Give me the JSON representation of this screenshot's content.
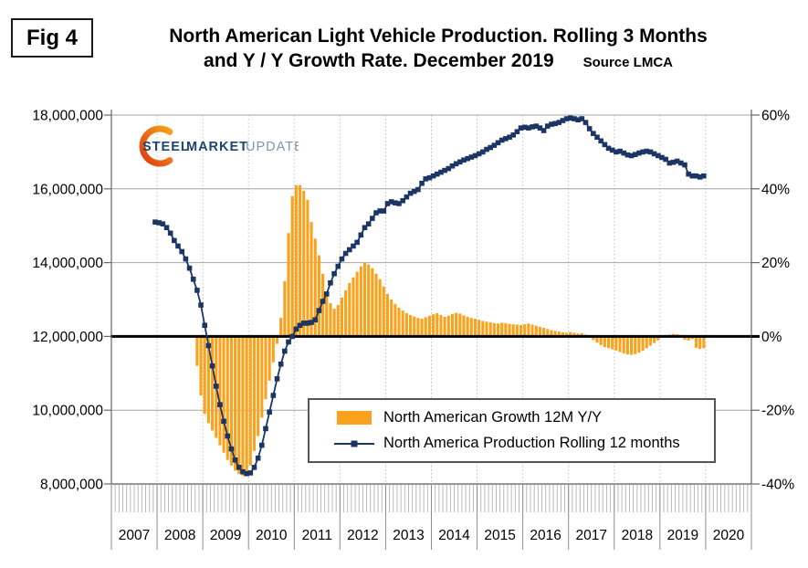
{
  "figure": {
    "fig_label": "Fig 4",
    "title_line1": "North American Light Vehicle Production. Rolling 3 Months",
    "title_line2": "and Y / Y Growth Rate. December 2019",
    "source": "Source LMCA"
  },
  "logo": {
    "word1": "STEEL",
    "word2": "MARKET",
    "word3": "UPDATE"
  },
  "legend": {
    "items": [
      {
        "label": "North American Growth 12M Y/Y",
        "marker": "bar"
      },
      {
        "label": "North America Production Rolling 12 months",
        "marker": "line-square"
      }
    ]
  },
  "colors": {
    "bar": "#FAA21B",
    "line": "#1B3564",
    "zero_line": "#000000",
    "grid": "#A6A6A6",
    "year_grid_dotted": "#BFBFBF",
    "axis": "#666666",
    "minor_tick": "#B3B3B3",
    "logo_navy": "#1E4374",
    "logo_light_blue": "#7E96AF",
    "logo_orange_start": "#E84E1B",
    "logo_orange_end": "#F9A01B"
  },
  "chart_data": {
    "type": "combo",
    "title": "North American Light Vehicle Production. Rolling 3 Months and Y / Y Growth Rate. December 2019",
    "grid": true,
    "legend_position": "inside-bottom-center",
    "x_axis": {
      "years": [
        "2007",
        "2008",
        "2009",
        "2010",
        "2011",
        "2012",
        "2013",
        "2014",
        "2015",
        "2016",
        "2017",
        "2018",
        "2019",
        "2020"
      ],
      "range_months": [
        "2007-01",
        "2020-12"
      ]
    },
    "y_left": {
      "min": 8000000,
      "max": 18000000,
      "tick_labels": [
        "18,000,000",
        "16,000,000",
        "14,000,000",
        "12,000,000",
        "10,000,000",
        "8,000,000"
      ],
      "tick_values_millions": [
        18,
        16,
        14,
        12,
        10,
        8
      ]
    },
    "y_right": {
      "min_pct": -40,
      "max_pct": 60,
      "tick_labels": [
        "60%",
        "40%",
        "20%",
        "0%",
        "-20%",
        "-40%"
      ],
      "tick_values_pct": [
        60,
        40,
        20,
        0,
        -20,
        -40
      ]
    },
    "zero_line_pct": 0,
    "series": [
      {
        "name": "North American Growth 12M Y/Y",
        "type": "bar",
        "axis": "right",
        "unit": "percent",
        "color": "#FAA21B",
        "start_month": "2008-11",
        "values": [
          -8,
          -16,
          -21,
          -23.5,
          -25.5,
          -27.5,
          -29.5,
          -31.5,
          -33.5,
          -35,
          -36.4,
          -37.3,
          -37.7,
          -36.5,
          -35,
          -31,
          -27,
          -22,
          -17,
          -12,
          -7,
          -2,
          5,
          15,
          28,
          38,
          41,
          41,
          39.5,
          37,
          31,
          26.5,
          22,
          17,
          12,
          9,
          7.5,
          8.5,
          10.5,
          12.5,
          14.5,
          16,
          17.5,
          19,
          20,
          19.5,
          18.5,
          17,
          15.5,
          13.5,
          11.5,
          10,
          8.8,
          7.8,
          7,
          6.3,
          5.8,
          5.4,
          5,
          4.8,
          5.2,
          5.6,
          6,
          6.3,
          5.8,
          5.3,
          5.6,
          6.1,
          6.4,
          6.2,
          5.7,
          5.3,
          5,
          4.8,
          4.5,
          4.2,
          4,
          3.8,
          3.6,
          3.5,
          3.7,
          3.6,
          3.4,
          3.3,
          3.2,
          3.1,
          3.3,
          3.5,
          3.2,
          2.9,
          2.6,
          2.3,
          2,
          1.7,
          1.5,
          1.3,
          1.1,
          1,
          1.2,
          1,
          0.8,
          0.9,
          0.5,
          -0.4,
          -1,
          -1.7,
          -2.4,
          -2.9,
          -3.2,
          -3.5,
          -3.8,
          -4.2,
          -4.6,
          -4.9,
          -5,
          -4.8,
          -4.4,
          -3.9,
          -3.2,
          -2.5,
          -1.8,
          -1.1,
          -0.4,
          0.3,
          0.5,
          0.7,
          0.6,
          0.4,
          -0.9,
          -1.1,
          -0.7,
          -3.1,
          -3.4,
          -3.2
        ]
      },
      {
        "name": "North America Production Rolling 12 months",
        "type": "line",
        "axis": "left",
        "unit": "millions of vehicles",
        "color": "#1B3564",
        "start_month": "2007-12",
        "values": [
          15.1,
          15.08,
          15.05,
          14.95,
          14.8,
          14.6,
          14.45,
          14.3,
          14.1,
          13.85,
          13.55,
          13.25,
          12.85,
          12.3,
          11.75,
          11.2,
          10.65,
          10.15,
          9.7,
          9.3,
          8.95,
          8.65,
          8.45,
          8.33,
          8.28,
          8.3,
          8.45,
          8.7,
          9.05,
          9.5,
          9.95,
          10.4,
          10.85,
          11.25,
          11.6,
          11.85,
          12.0,
          12.2,
          12.3,
          12.36,
          12.36,
          12.38,
          12.45,
          12.7,
          12.95,
          13.15,
          13.45,
          13.7,
          13.9,
          14.1,
          14.25,
          14.35,
          14.45,
          14.55,
          14.75,
          14.95,
          15.05,
          15.2,
          15.35,
          15.4,
          15.4,
          15.6,
          15.65,
          15.62,
          15.6,
          15.68,
          15.78,
          15.88,
          15.93,
          15.98,
          16.15,
          16.27,
          16.3,
          16.35,
          16.4,
          16.45,
          16.5,
          16.55,
          16.62,
          16.68,
          16.73,
          16.78,
          16.82,
          16.86,
          16.9,
          16.95,
          17.0,
          17.07,
          17.12,
          17.18,
          17.25,
          17.32,
          17.36,
          17.4,
          17.46,
          17.55,
          17.65,
          17.67,
          17.65,
          17.68,
          17.7,
          17.65,
          17.58,
          17.7,
          17.75,
          17.77,
          17.8,
          17.85,
          17.9,
          17.92,
          17.9,
          17.87,
          17.9,
          17.8,
          17.63,
          17.5,
          17.4,
          17.3,
          17.2,
          17.1,
          17.05,
          17.0,
          17.02,
          16.97,
          16.92,
          16.9,
          16.93,
          16.97,
          17.0,
          17.02,
          17.0,
          16.95,
          16.9,
          16.85,
          16.8,
          16.7,
          16.72,
          16.75,
          16.7,
          16.65,
          16.4,
          16.35,
          16.35,
          16.32,
          16.35
        ]
      }
    ]
  }
}
